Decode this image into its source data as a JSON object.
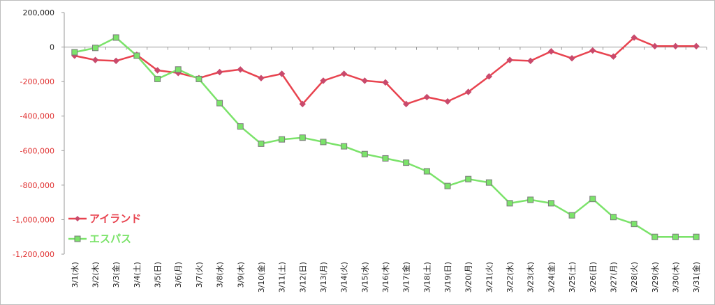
{
  "chart_data": {
    "type": "line",
    "title": "",
    "xlabel": "",
    "ylabel": "",
    "ylim": [
      -1200000,
      200000
    ],
    "y_ticks": [
      "200,000",
      "0",
      "-200,000",
      "-400,000",
      "-600,000",
      "-800,000",
      "-1,000,000",
      "-1,200,000"
    ],
    "y_tick_values": [
      200000,
      0,
      -200000,
      -400000,
      -600000,
      -800000,
      -1000000,
      -1200000
    ],
    "grid": false,
    "legend_position": "bottom-left",
    "categories": [
      "3/1(水)",
      "3/2(木)",
      "3/3(金)",
      "3/4(土)",
      "3/5(日)",
      "3/6(月)",
      "3/7(火)",
      "3/8(水)",
      "3/9(木)",
      "3/10(金)",
      "3/11(土)",
      "3/12(日)",
      "3/13(月)",
      "3/14(火)",
      "3/15(水)",
      "3/16(木)",
      "3/17(金)",
      "3/18(土)",
      "3/19(日)",
      "3/20(月)",
      "3/21(火)",
      "3/22(水)",
      "3/23(木)",
      "3/24(金)",
      "3/25(土)",
      "3/26(日)",
      "3/27(月)",
      "3/28(火)",
      "3/29(水)",
      "3/30(木)",
      "3/31(金)"
    ],
    "series": [
      {
        "name": "アイランド",
        "color": "#e8434f",
        "marker": "diamond",
        "values": [
          -50000,
          -75000,
          -80000,
          -45000,
          -135000,
          -150000,
          -180000,
          -145000,
          -130000,
          -180000,
          -155000,
          -330000,
          -195000,
          -155000,
          -195000,
          -205000,
          -330000,
          -290000,
          -315000,
          -260000,
          -170000,
          -75000,
          -80000,
          -25000,
          -65000,
          -20000,
          -55000,
          55000,
          5000,
          5000,
          5000
        ]
      },
      {
        "name": "エスパス",
        "color": "#7be36a",
        "marker": "square",
        "values": [
          -30000,
          -5000,
          55000,
          -50000,
          -185000,
          -130000,
          -185000,
          -325000,
          -460000,
          -560000,
          -535000,
          -525000,
          -550000,
          -575000,
          -620000,
          -645000,
          -670000,
          -720000,
          -805000,
          -765000,
          -785000,
          -905000,
          -885000,
          -905000,
          -975000,
          -880000,
          -985000,
          -1025000,
          -1100000,
          -1100000,
          -1100000
        ]
      }
    ]
  }
}
